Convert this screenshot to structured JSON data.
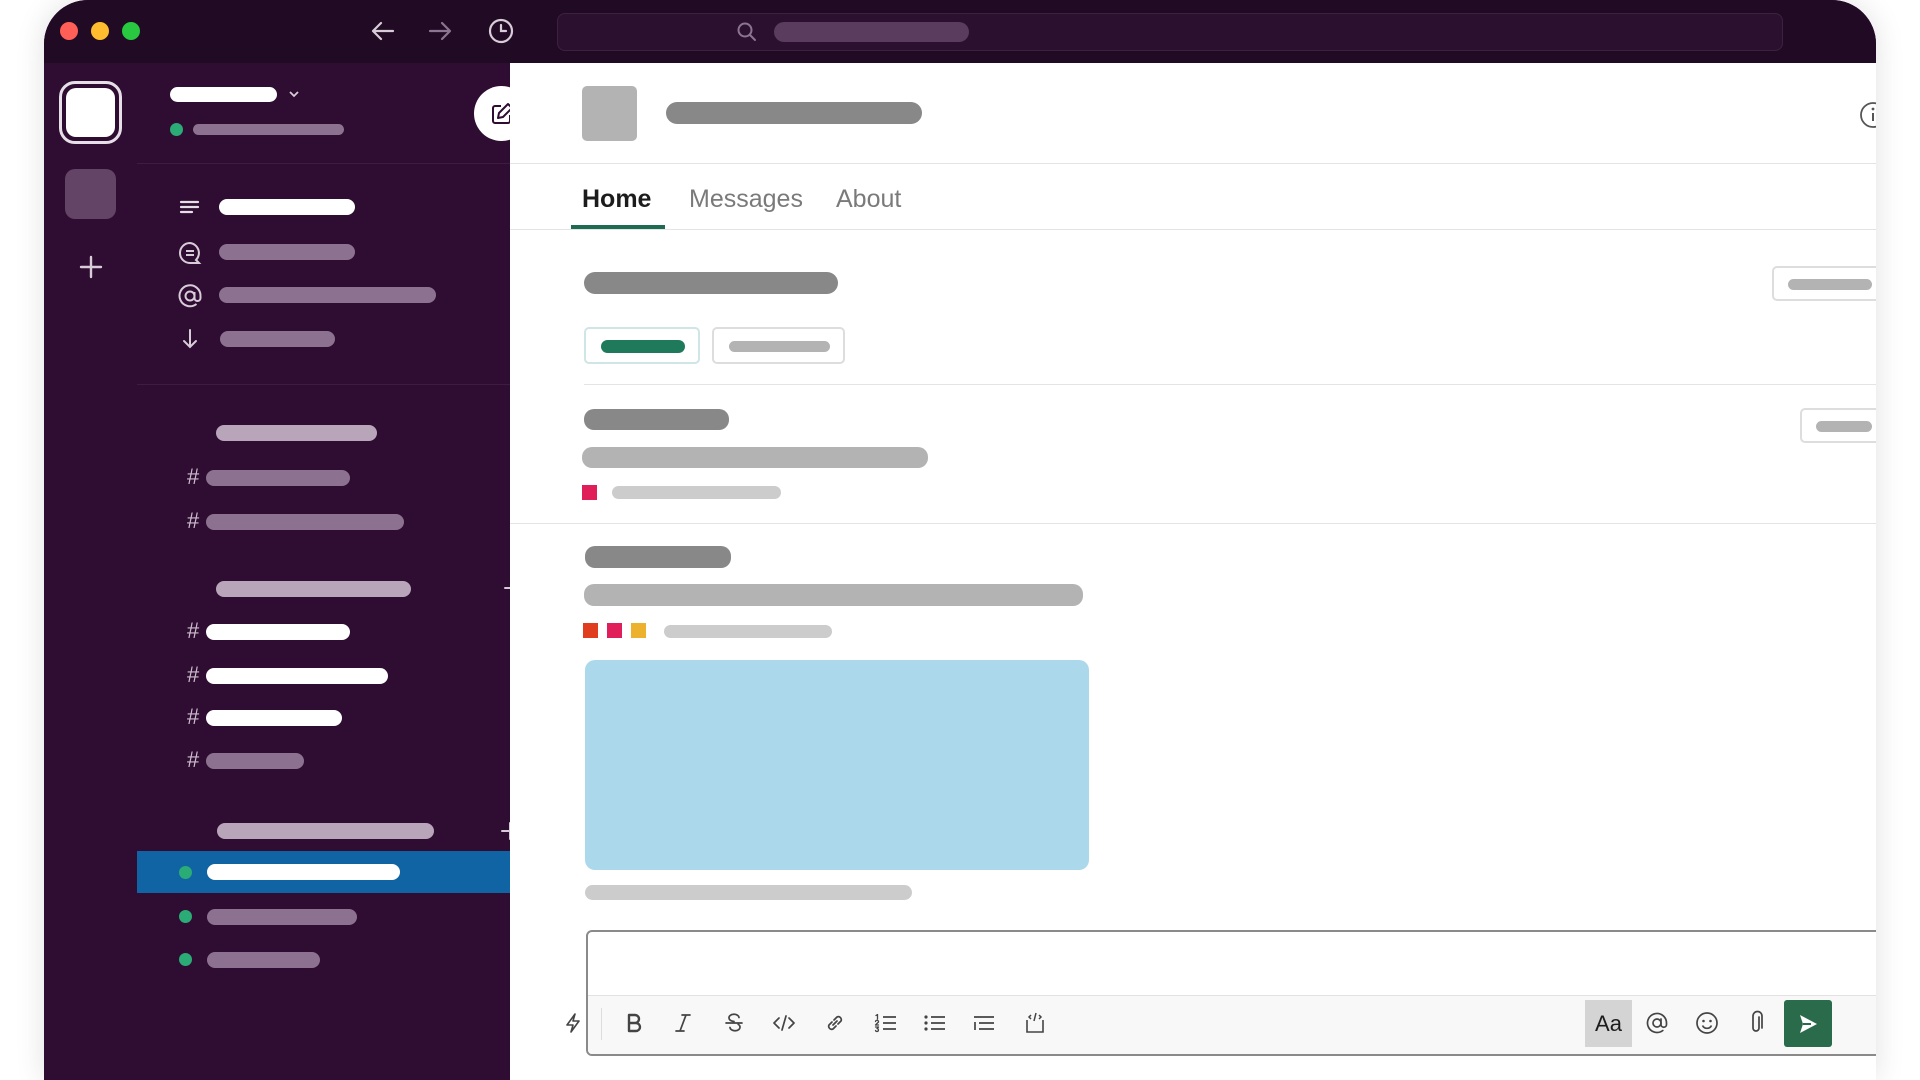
{
  "window": {
    "traffic_lights": [
      "#ff5f57",
      "#febc2e",
      "#28c840"
    ],
    "nav_icons": [
      "arrow-left-icon",
      "arrow-right-icon",
      "history-clock-icon"
    ],
    "search_icon": "search-icon"
  },
  "colors": {
    "sidebar_bg": "#2f0c31",
    "titlebar_bg": "#210a23",
    "selected_row": "#1164a3",
    "presence_green": "#2bac76",
    "accent_green": "#1e7a5a",
    "send_green": "#2a6b4c",
    "image_placeholder": "#acd8ec",
    "tag_colors": [
      "#e03d1f",
      "#e01e5a",
      "#ecb22e"
    ]
  },
  "sidebar": {
    "nav_icons": [
      "threads-icon",
      "dm-bubble-icon",
      "mentions-at-icon",
      "downloads-arrow-icon"
    ],
    "compose_icon": "compose-icon"
  },
  "main": {
    "tabs": [
      {
        "label": "Home",
        "active": true
      },
      {
        "label": "Messages",
        "active": false
      },
      {
        "label": "About",
        "active": false
      }
    ],
    "info_icon": "info-icon"
  },
  "composer": {
    "text_style_label": "Aa",
    "toolbar_icons": [
      "shortcuts-lightning-icon",
      "bold-icon",
      "italic-icon",
      "strikethrough-icon",
      "code-icon",
      "link-icon",
      "ordered-list-icon",
      "bulleted-list-icon",
      "blockquote-icon",
      "code-block-icon"
    ],
    "right_icons": [
      "mention-icon",
      "emoji-icon",
      "attach-icon",
      "send-icon"
    ]
  }
}
